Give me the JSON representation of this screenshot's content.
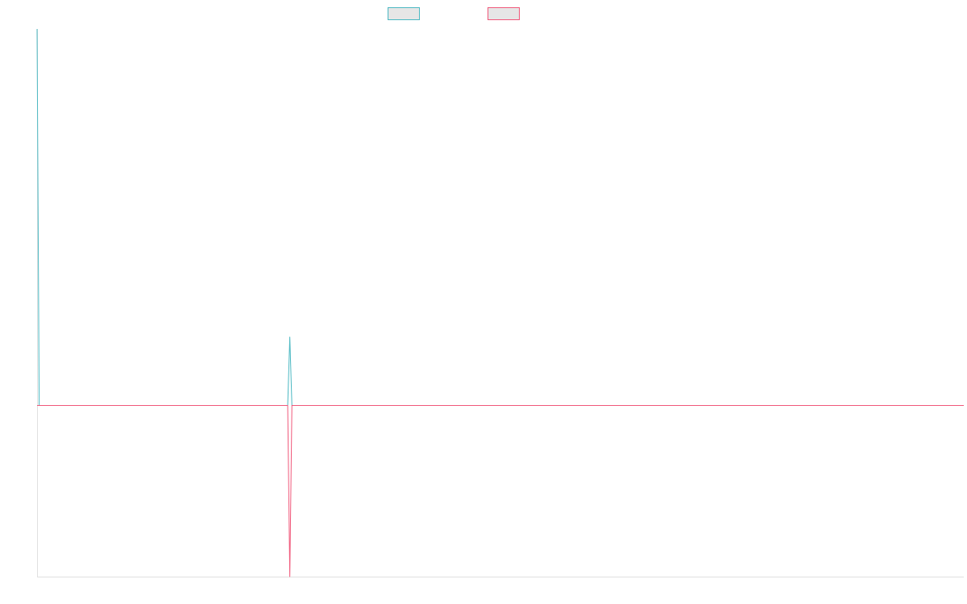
{
  "chart_data": {
    "type": "line",
    "title": "",
    "xlabel": "",
    "ylabel": "",
    "grid": false,
    "legend_placement": "top-center",
    "ylim": [
      -1,
      2.2
    ],
    "xlim": [
      0,
      88
    ],
    "series": [
      {
        "name": "",
        "color": "#4bb8c2",
        "x": [
          0,
          0.2,
          23.8,
          24,
          24.2,
          88
        ],
        "values": [
          2.2,
          0,
          0,
          0.4,
          0,
          0
        ]
      },
      {
        "name": "",
        "color": "#f0587a",
        "x": [
          0,
          23.8,
          24,
          24.2,
          88
        ],
        "values": [
          0,
          0,
          -1,
          0,
          0
        ]
      }
    ]
  },
  "colors": {
    "series_1": "#4bb8c2",
    "series_2": "#f0587a",
    "axis": "#e0e0e0",
    "legend_fill": "#e6e6e6"
  }
}
